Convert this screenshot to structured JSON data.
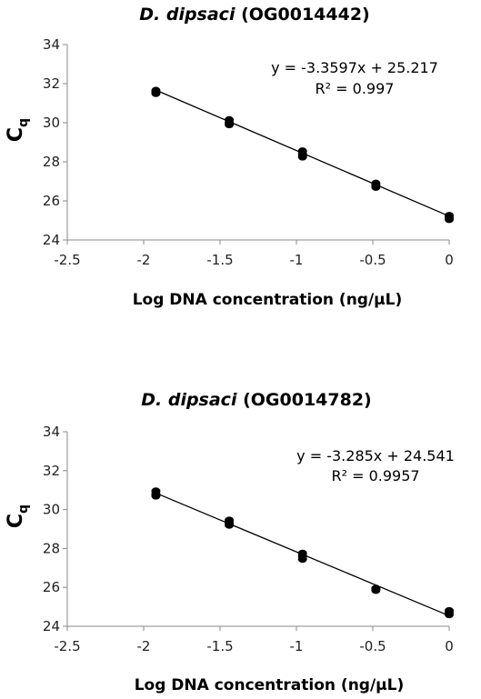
{
  "chart_data": [
    {
      "type": "scatter",
      "title_italic": "D. dipsaci",
      "title_rest": " (OG0014442)",
      "xlabel": "Log DNA concentration (ng/μL)",
      "ylabel_main": "C",
      "ylabel_sub": "q",
      "xlim": [
        -2.5,
        0
      ],
      "ylim": [
        24,
        34
      ],
      "xticks": [
        -2.5,
        -2,
        -1.5,
        -1,
        -0.5,
        0
      ],
      "xtick_labels": [
        "-2.5",
        "-2",
        "-1.5",
        "-1",
        "-0.5",
        "0"
      ],
      "yticks": [
        24,
        26,
        28,
        30,
        32,
        34
      ],
      "ytick_labels": [
        "24",
        "26",
        "28",
        "30",
        "32",
        "34"
      ],
      "equation": "y = -3.3597x + 25.217",
      "r_squared": "R² = 0.997",
      "trendline": {
        "slope": -3.3597,
        "intercept": 25.217,
        "x_range": [
          -1.92,
          0
        ]
      },
      "points": [
        {
          "x": -1.92,
          "y": 31.65
        },
        {
          "x": -1.92,
          "y": 31.5
        },
        {
          "x": -1.92,
          "y": 31.58
        },
        {
          "x": -1.44,
          "y": 30.15
        },
        {
          "x": -1.44,
          "y": 29.9
        },
        {
          "x": -1.44,
          "y": 30.0
        },
        {
          "x": -0.96,
          "y": 28.55
        },
        {
          "x": -0.96,
          "y": 28.25
        },
        {
          "x": -0.96,
          "y": 28.4
        },
        {
          "x": -0.48,
          "y": 26.9
        },
        {
          "x": -0.48,
          "y": 26.7
        },
        {
          "x": -0.48,
          "y": 26.8
        },
        {
          "x": 0,
          "y": 25.25
        },
        {
          "x": 0,
          "y": 25.05
        },
        {
          "x": 0,
          "y": 25.15
        }
      ]
    },
    {
      "type": "scatter",
      "title_italic": "D. dipsaci",
      "title_rest": " (OG0014782)",
      "xlabel": "Log DNA concentration (ng/μL)",
      "ylabel_main": "C",
      "ylabel_sub": "q",
      "xlim": [
        -2.5,
        0
      ],
      "ylim": [
        24,
        34
      ],
      "xticks": [
        -2.5,
        -2,
        -1.5,
        -1,
        -0.5,
        0
      ],
      "xtick_labels": [
        "-2.5",
        "-2",
        "-1.5",
        "-1",
        "-0.5",
        "0"
      ],
      "yticks": [
        24,
        26,
        28,
        30,
        32,
        34
      ],
      "ytick_labels": [
        "24",
        "26",
        "28",
        "30",
        "32",
        "34"
      ],
      "equation": "y = -3.285x + 24.541",
      "r_squared": "R² = 0.9957",
      "trendline": {
        "slope": -3.285,
        "intercept": 24.541,
        "x_range": [
          -1.92,
          0
        ]
      },
      "points": [
        {
          "x": -1.92,
          "y": 30.95
        },
        {
          "x": -1.92,
          "y": 30.7
        },
        {
          "x": -1.92,
          "y": 30.8
        },
        {
          "x": -1.44,
          "y": 29.45
        },
        {
          "x": -1.44,
          "y": 29.2
        },
        {
          "x": -1.44,
          "y": 29.3
        },
        {
          "x": -0.96,
          "y": 27.75
        },
        {
          "x": -0.96,
          "y": 27.45
        },
        {
          "x": -0.96,
          "y": 27.6
        },
        {
          "x": -0.48,
          "y": 25.95
        },
        {
          "x": -0.48,
          "y": 25.85
        },
        {
          "x": -0.48,
          "y": 25.9
        },
        {
          "x": 0,
          "y": 24.8
        },
        {
          "x": 0,
          "y": 24.6
        },
        {
          "x": 0,
          "y": 24.7
        }
      ]
    }
  ]
}
